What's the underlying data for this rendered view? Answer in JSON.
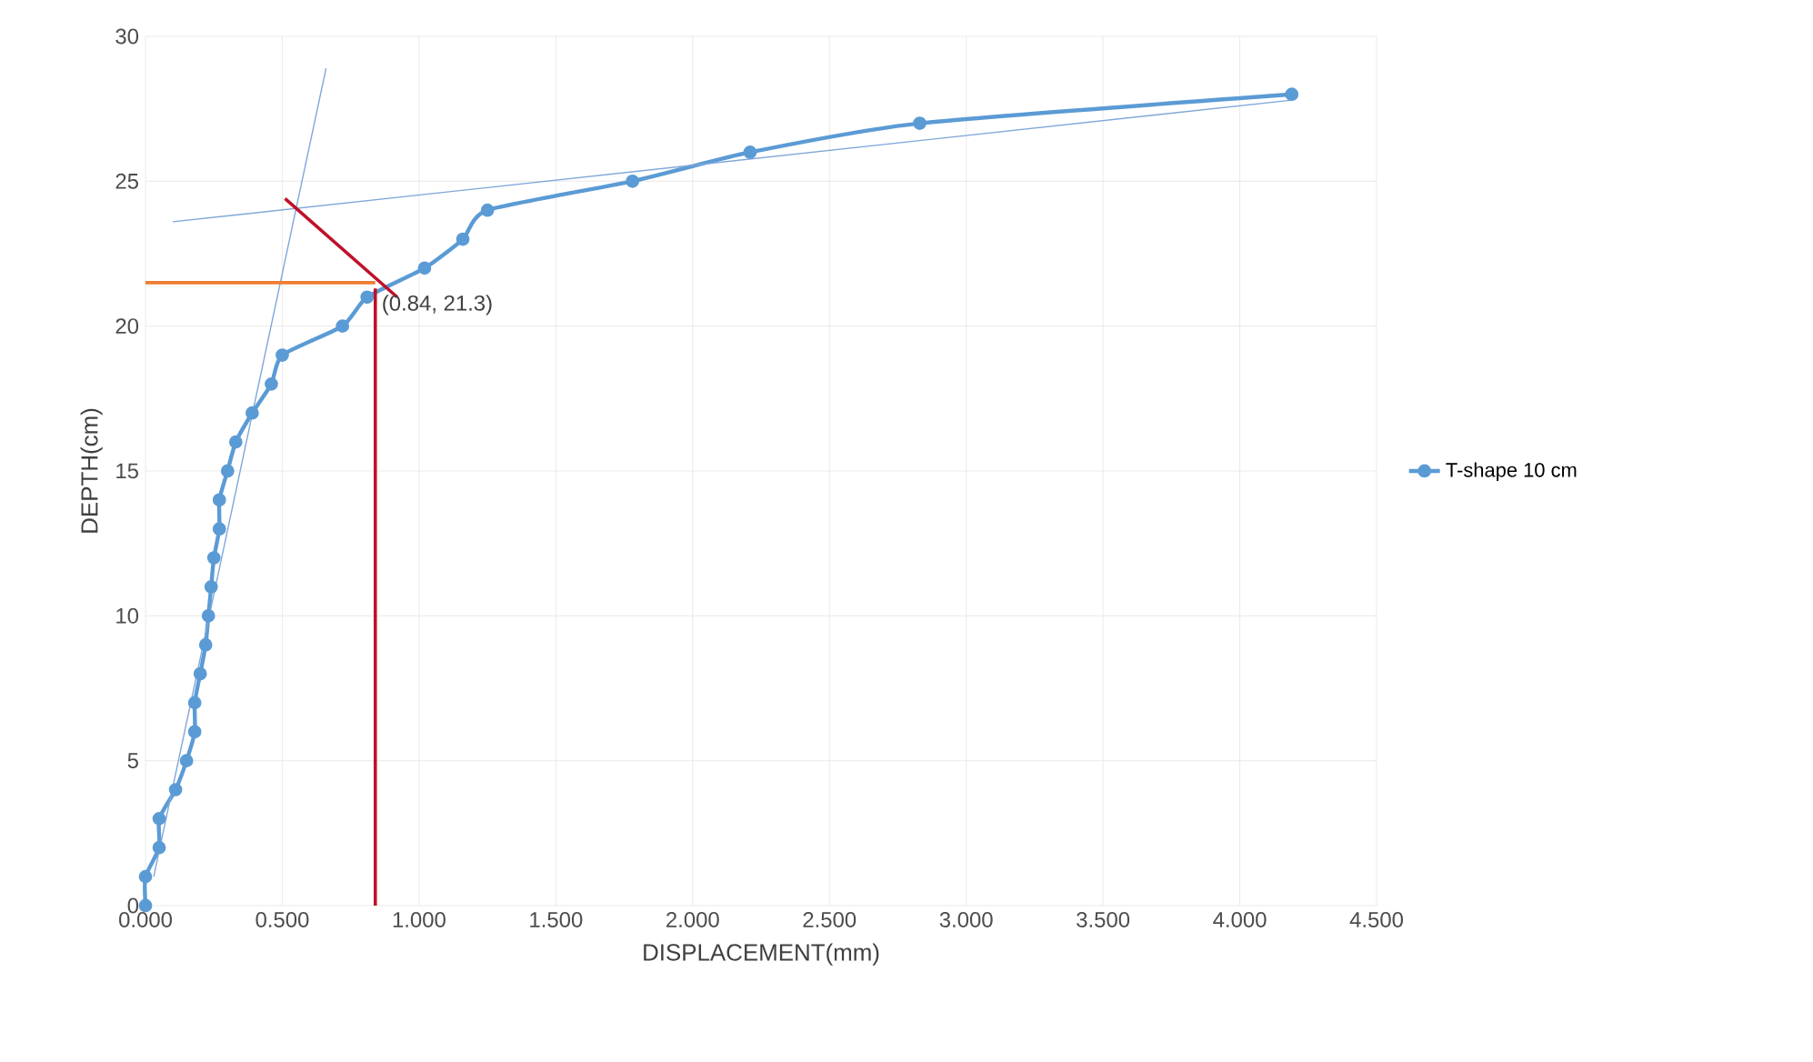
{
  "chart_data": {
    "type": "line",
    "xlabel": "DISPLACEMENT(mm)",
    "ylabel": "DEPTH(cm)",
    "xlim": [
      0,
      4.5
    ],
    "ylim": [
      0,
      30
    ],
    "xticks": [
      {
        "value": 0,
        "label": "0.000"
      },
      {
        "value": 0.5,
        "label": "0.500"
      },
      {
        "value": 1,
        "label": "1.000"
      },
      {
        "value": 1.5,
        "label": "1.500"
      },
      {
        "value": 2,
        "label": "2.000"
      },
      {
        "value": 2.5,
        "label": "2.500"
      },
      {
        "value": 3,
        "label": "3.000"
      },
      {
        "value": 3.5,
        "label": "3.500"
      },
      {
        "value": 4,
        "label": "4.000"
      },
      {
        "value": 4.5,
        "label": "4.500"
      }
    ],
    "yticks": [
      0,
      5,
      10,
      15,
      20,
      25,
      30
    ],
    "grid": true,
    "legend": "right",
    "marker": "circle",
    "annotations": [
      {
        "text": "(0.84, 21.3)",
        "x": 0.84,
        "y": 21.3
      }
    ],
    "series": [
      {
        "name": "T-shape 10 cm",
        "color": "#5b9bd5",
        "x": [
          0.0,
          0.0,
          0.05,
          0.05,
          0.11,
          0.15,
          0.18,
          0.18,
          0.2,
          0.22,
          0.23,
          0.24,
          0.25,
          0.27,
          0.27,
          0.3,
          0.33,
          0.39,
          0.46,
          0.5,
          0.72,
          0.81,
          1.02,
          1.16,
          1.25,
          1.78,
          2.21,
          2.83,
          4.19
        ],
        "values": [
          0,
          1,
          2,
          3,
          4,
          5,
          6,
          7,
          8,
          9,
          10,
          11,
          12,
          13,
          14,
          15,
          16,
          17,
          18,
          19,
          20,
          21,
          22,
          23,
          24,
          25,
          26,
          27,
          28
        ]
      },
      {
        "color": "#7fa7d9",
        "marker": "none",
        "x": [
          0.03,
          0.66
        ],
        "values": [
          1,
          28.9
        ]
      },
      {
        "color": "#7fa7d9",
        "marker": "none",
        "x": [
          0.1,
          4.19
        ],
        "values": [
          23.6,
          27.8
        ]
      },
      {
        "color": "#c0102a",
        "marker": "none",
        "x": [
          0.51,
          0.92
        ],
        "values": [
          24.4,
          21.0
        ]
      },
      {
        "color": "#ed7d31",
        "marker": "none",
        "x": [
          0,
          0.84
        ],
        "values": [
          21.5,
          21.5
        ]
      },
      {
        "color": "#c0102a",
        "marker": "none",
        "x": [
          0.84,
          0.84
        ],
        "values": [
          0,
          21.3
        ]
      }
    ]
  }
}
